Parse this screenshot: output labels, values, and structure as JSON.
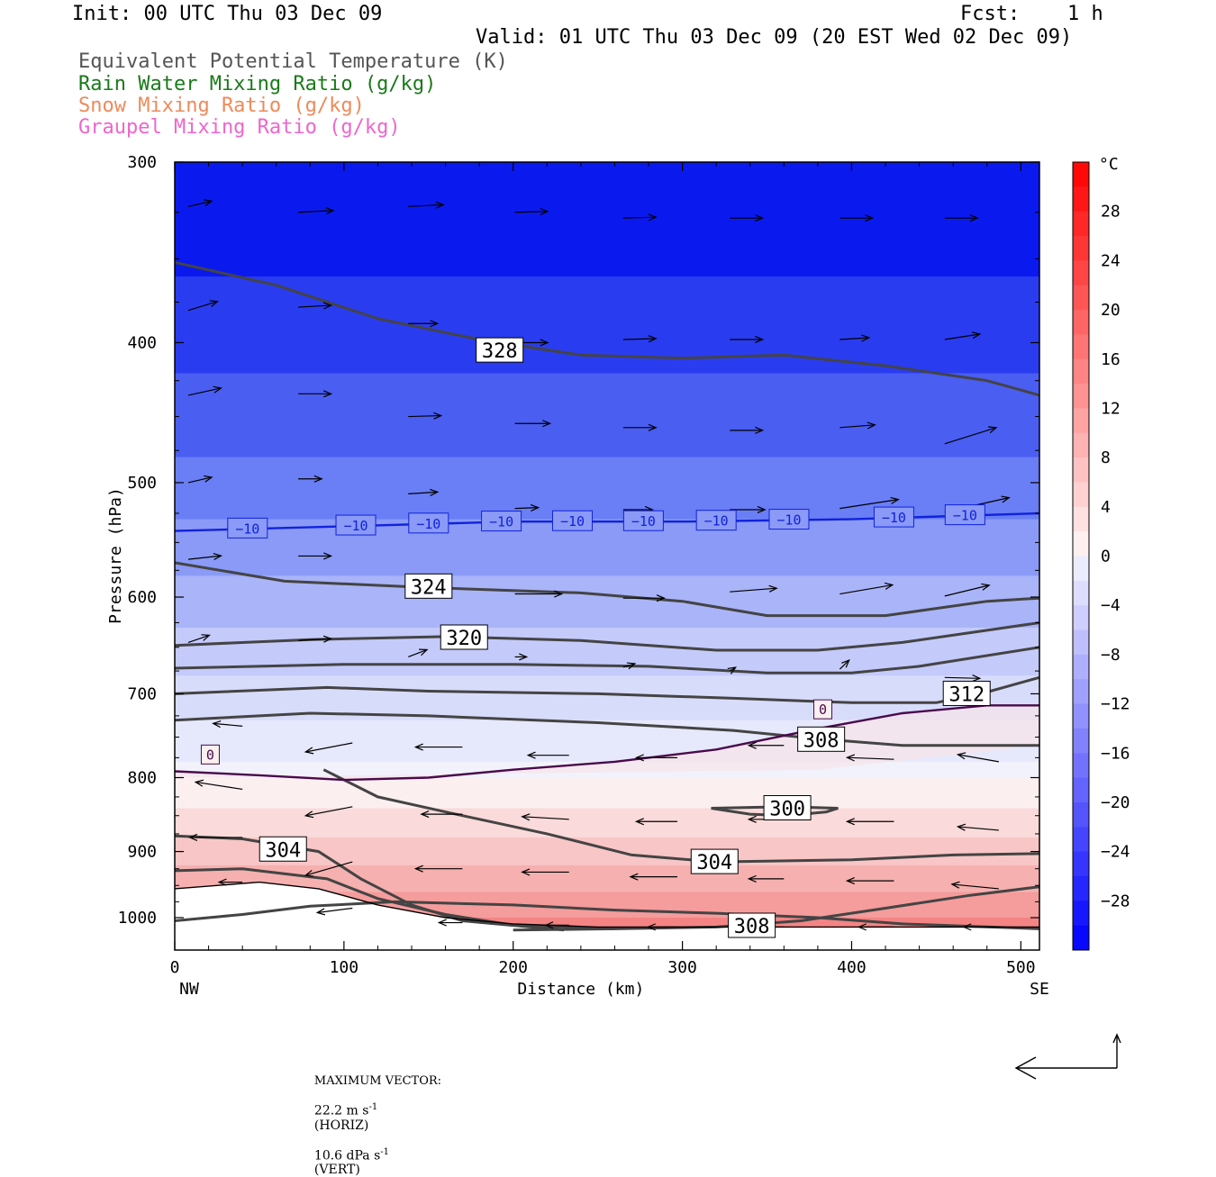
{
  "header": {
    "init": "Init: 00 UTC Thu 03 Dec 09",
    "fcst_label": "Fcst:",
    "fcst_value": "1 h",
    "valid": "Valid: 01 UTC Thu 03 Dec 09 (20 EST Wed 02 Dec 09)"
  },
  "legend": [
    {
      "text": "Equivalent Potential Temperature (K)",
      "color": "#555555"
    },
    {
      "text": "Rain Water Mixing Ratio (g/kg)",
      "color": "#1a7a1a"
    },
    {
      "text": "Snow Mixing Ratio (g/kg)",
      "color": "#ee8a5a"
    },
    {
      "text": "Graupel Mixing Ratio (g/kg)",
      "color": "#ee66cc"
    }
  ],
  "footer": {
    "max_vector_label": "MAXIMUM VECTOR:",
    "horiz": "22.2 m s",
    "horiz_exp": "-1",
    "horiz_suffix": "(HORIZ)",
    "vert": "10.6 dPa s",
    "vert_exp": "-1",
    "vert_suffix": "(VERT)"
  },
  "colors": {
    "theta_e_contour": "#444444",
    "zero_isotherm": "#4a0a4a",
    "minus10_isotherm": "#1122dd",
    "cold": "#0000ff",
    "warm": "#ff4d4d"
  },
  "chart_data": {
    "type": "cross-section",
    "title": "Equivalent Potential Temperature (K)",
    "xlabel": "Distance (km)",
    "ylabel": "Pressure (hPa)",
    "x_range": [
      0,
      511
    ],
    "y_range_hpa": [
      1025,
      300
    ],
    "y_scale": "log-pressure (inverted)",
    "x_ticks": [
      0,
      100,
      200,
      300,
      400,
      500
    ],
    "x_tick_labels": [
      "0",
      "100",
      "200",
      "300",
      "400",
      "500"
    ],
    "x_end_labels": {
      "left": "NW",
      "right": "SE"
    },
    "y_ticks": [
      300,
      400,
      500,
      600,
      700,
      800,
      900,
      1000
    ],
    "y_tick_labels": [
      "300",
      "400",
      "500",
      "600",
      "700",
      "800",
      "900",
      "1000"
    ],
    "colorbar": {
      "unit": "°C",
      "ticks": [
        28,
        24,
        20,
        16,
        12,
        8,
        4,
        0,
        -4,
        -8,
        -12,
        -16,
        -20,
        -24,
        -28
      ],
      "tick_labels": [
        "28",
        "24",
        "20",
        "16",
        "12",
        "8",
        "4",
        "0",
        "−4",
        "−8",
        "−12",
        "−16",
        "−20",
        "−24",
        "−28"
      ],
      "range": [
        -32,
        32
      ]
    },
    "theta_e_contours": [
      {
        "label": "328",
        "label_at": [
          192,
          405
        ],
        "points": [
          [
            0,
            352
          ],
          [
            60,
            365
          ],
          [
            120,
            385
          ],
          [
            180,
            398
          ],
          [
            240,
            408
          ],
          [
            300,
            410
          ],
          [
            360,
            408
          ],
          [
            420,
            415
          ],
          [
            480,
            425
          ],
          [
            511,
            435
          ]
        ]
      },
      {
        "label": "324",
        "label_at": [
          150,
          590
        ],
        "points": [
          [
            0,
            568
          ],
          [
            65,
            585
          ],
          [
            150,
            591
          ],
          [
            240,
            596
          ],
          [
            300,
            604
          ],
          [
            350,
            618
          ],
          [
            420,
            618
          ],
          [
            480,
            604
          ],
          [
            511,
            601
          ]
        ]
      },
      {
        "label": "320",
        "label_at": [
          171,
          640
        ],
        "points": [
          [
            0,
            648
          ],
          [
            80,
            642
          ],
          [
            160,
            639
          ],
          [
            240,
            643
          ],
          [
            320,
            653
          ],
          [
            380,
            653
          ],
          [
            430,
            645
          ],
          [
            511,
            625
          ]
        ]
      },
      {
        "label": "",
        "label_at": null,
        "points": [
          [
            0,
            672
          ],
          [
            100,
            668
          ],
          [
            200,
            668
          ],
          [
            280,
            670
          ],
          [
            350,
            677
          ],
          [
            400,
            677
          ],
          [
            440,
            670
          ],
          [
            511,
            650
          ]
        ]
      },
      {
        "label": "312",
        "label_at": [
          468,
          700
        ],
        "points": [
          [
            0,
            700
          ],
          [
            90,
            693
          ],
          [
            150,
            697
          ],
          [
            250,
            700
          ],
          [
            330,
            705
          ],
          [
            400,
            710
          ],
          [
            450,
            710
          ],
          [
            480,
            698
          ],
          [
            511,
            682
          ]
        ]
      },
      {
        "label": "308",
        "label_at": [
          382,
          753
        ],
        "points": [
          [
            0,
            730
          ],
          [
            80,
            722
          ],
          [
            150,
            725
          ],
          [
            250,
            733
          ],
          [
            330,
            742
          ],
          [
            380,
            752
          ],
          [
            430,
            760
          ],
          [
            511,
            760
          ]
        ]
      },
      {
        "label": "",
        "label_at": null,
        "points": [
          [
            0,
            1005
          ],
          [
            40,
            995
          ],
          [
            80,
            982
          ],
          [
            130,
            975
          ],
          [
            200,
            980
          ],
          [
            260,
            988
          ],
          [
            320,
            993
          ],
          [
            380,
            1000
          ],
          [
            430,
            1010
          ],
          [
            511,
            1018
          ]
        ]
      },
      {
        "label": "300",
        "label_at": [
          362,
          840
        ],
        "points": [
          [
            317,
            840
          ],
          [
            340,
            848
          ],
          [
            362,
            850
          ],
          [
            385,
            845
          ],
          [
            392,
            840
          ],
          [
            362,
            838
          ],
          [
            317,
            840
          ]
        ]
      },
      {
        "label": "304",
        "label_at": [
          64,
          897
        ],
        "points": [
          [
            0,
            878
          ],
          [
            40,
            882
          ],
          [
            85,
            900
          ],
          [
            110,
            940
          ],
          [
            140,
            980
          ],
          [
            170,
            1005
          ],
          [
            230,
            1020
          ]
        ]
      },
      {
        "label": "304",
        "label_at": [
          319,
          915
        ],
        "points": [
          [
            88,
            790
          ],
          [
            120,
            825
          ],
          [
            170,
            850
          ],
          [
            220,
            875
          ],
          [
            270,
            905
          ],
          [
            320,
            915
          ],
          [
            400,
            912
          ],
          [
            460,
            905
          ],
          [
            511,
            903
          ]
        ]
      },
      {
        "label": "",
        "label_at": null,
        "points": [
          [
            0,
            928
          ],
          [
            40,
            925
          ],
          [
            90,
            940
          ],
          [
            120,
            970
          ],
          [
            160,
            995
          ],
          [
            200,
            1012
          ],
          [
            260,
            1018
          ]
        ]
      },
      {
        "label": "308",
        "label_at": [
          341,
          1013
        ],
        "points": [
          [
            200,
            1020
          ],
          [
            260,
            1018
          ],
          [
            320,
            1015
          ],
          [
            370,
            1005
          ],
          [
            420,
            985
          ],
          [
            470,
            965
          ],
          [
            511,
            952
          ]
        ]
      }
    ],
    "isotherms": [
      {
        "label": "−10",
        "points": [
          [
            0,
            540
          ],
          [
            100,
            536
          ],
          [
            200,
            532
          ],
          [
            300,
            532
          ],
          [
            400,
            530
          ],
          [
            511,
            525
          ]
        ],
        "label_positions": [
          43,
          107,
          150,
          193,
          235,
          277,
          320,
          363,
          425,
          467
        ]
      },
      {
        "label": "0",
        "points": [
          [
            0,
            792
          ],
          [
            50,
            797
          ],
          [
            100,
            803
          ],
          [
            150,
            800
          ],
          [
            200,
            790
          ],
          [
            260,
            780
          ],
          [
            320,
            765
          ],
          [
            380,
            740
          ],
          [
            430,
            722
          ],
          [
            480,
            713
          ],
          [
            511,
            713
          ]
        ],
        "label_positions": [
          21,
          383
        ]
      }
    ],
    "surface_terrain_hpa": [
      [
        0,
        955
      ],
      [
        50,
        945
      ],
      [
        85,
        955
      ],
      [
        120,
        980
      ],
      [
        160,
        1000
      ],
      [
        200,
        1010
      ],
      [
        250,
        1015
      ],
      [
        300,
        1015
      ],
      [
        350,
        1015
      ],
      [
        400,
        1015
      ],
      [
        450,
        1015
      ],
      [
        511,
        1015
      ]
    ],
    "wind_vectors": [
      [
        0,
        322,
        20,
        6
      ],
      [
        65,
        325,
        30,
        2
      ],
      [
        130,
        322,
        30,
        2
      ],
      [
        193,
        325,
        28,
        1
      ],
      [
        257,
        328,
        28,
        1
      ],
      [
        320,
        328,
        28,
        0
      ],
      [
        385,
        328,
        28,
        0
      ],
      [
        447,
        328,
        28,
        0
      ],
      [
        0,
        380,
        25,
        10
      ],
      [
        65,
        378,
        28,
        2
      ],
      [
        130,
        388,
        25,
        0
      ],
      [
        193,
        400,
        28,
        0
      ],
      [
        257,
        398,
        28,
        1
      ],
      [
        320,
        398,
        28,
        0
      ],
      [
        385,
        398,
        25,
        2
      ],
      [
        447,
        398,
        30,
        6
      ],
      [
        0,
        435,
        28,
        8
      ],
      [
        65,
        434,
        28,
        0
      ],
      [
        130,
        450,
        28,
        1
      ],
      [
        193,
        455,
        30,
        0
      ],
      [
        257,
        458,
        28,
        0
      ],
      [
        320,
        460,
        28,
        0
      ],
      [
        385,
        458,
        30,
        3
      ],
      [
        447,
        470,
        44,
        18
      ],
      [
        0,
        500,
        20,
        6
      ],
      [
        65,
        497,
        20,
        0
      ],
      [
        130,
        509,
        25,
        2
      ],
      [
        193,
        521,
        20,
        1
      ],
      [
        257,
        522,
        25,
        0
      ],
      [
        320,
        522,
        30,
        0
      ],
      [
        385,
        521,
        50,
        10
      ],
      [
        447,
        524,
        55,
        16
      ],
      [
        0,
        565,
        28,
        4
      ],
      [
        65,
        562,
        28,
        0
      ],
      [
        130,
        593,
        30,
        0
      ],
      [
        193,
        597,
        40,
        0
      ],
      [
        257,
        601,
        35,
        0
      ],
      [
        320,
        595,
        40,
        4
      ],
      [
        385,
        597,
        45,
        10
      ],
      [
        447,
        599,
        38,
        12
      ],
      [
        0,
        645,
        18,
        8
      ],
      [
        65,
        643,
        28,
        2
      ],
      [
        130,
        660,
        16,
        8
      ],
      [
        193,
        660,
        10,
        0
      ],
      [
        257,
        671,
        10,
        4
      ],
      [
        320,
        675,
        5,
        4
      ],
      [
        385,
        673,
        8,
        10
      ],
      [
        447,
        682,
        30,
        -1
      ]
    ],
    "wind_vectors_westward": [
      [
        0,
        737,
        -25,
        3
      ],
      [
        65,
        757,
        -40,
        -10
      ],
      [
        130,
        762,
        -40,
        0
      ],
      [
        193,
        772,
        -35,
        0
      ],
      [
        257,
        775,
        -35,
        0
      ],
      [
        320,
        760,
        -30,
        0
      ],
      [
        385,
        777,
        -40,
        2
      ],
      [
        447,
        780,
        -35,
        8
      ],
      [
        0,
        815,
        -40,
        8
      ],
      [
        65,
        838,
        -40,
        -10
      ],
      [
        130,
        848,
        -35,
        0
      ],
      [
        193,
        855,
        -40,
        3
      ],
      [
        257,
        858,
        -35,
        0
      ],
      [
        320,
        855,
        -30,
        0
      ],
      [
        385,
        858,
        -40,
        0
      ],
      [
        447,
        870,
        -35,
        4
      ],
      [
        0,
        880,
        -45,
        0
      ],
      [
        65,
        915,
        -40,
        -15
      ],
      [
        130,
        925,
        -40,
        0
      ],
      [
        193,
        930,
        -40,
        0
      ],
      [
        257,
        937,
        -40,
        0
      ],
      [
        320,
        940,
        -30,
        0
      ],
      [
        385,
        943,
        -40,
        0
      ],
      [
        447,
        955,
        -40,
        5
      ],
      [
        0,
        945,
        -20,
        0
      ],
      [
        65,
        985,
        -30,
        -5
      ],
      [
        130,
        1008,
        -20,
        0
      ],
      [
        193,
        1012,
        -20,
        0
      ],
      [
        257,
        1015,
        -25,
        0
      ],
      [
        320,
        1015,
        -30,
        0
      ],
      [
        385,
        1015,
        -30,
        0
      ],
      [
        447,
        1015,
        -30,
        0
      ]
    ]
  }
}
